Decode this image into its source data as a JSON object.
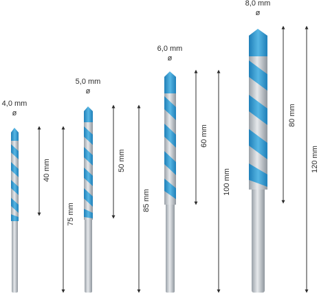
{
  "colors": {
    "tip_blue": "#3fa3d6",
    "tip_blue_dark": "#1f7fb8",
    "shank": "#c9ced3",
    "shank_dark": "#9aa1a8",
    "dimension_line": "#2b2b2b"
  },
  "bits": [
    {
      "diameter_label": "4,0 mm",
      "diameter_symbol": "ø",
      "working_length_label": "40 mm",
      "total_length_label": "75 mm",
      "working_length_mm": 40,
      "total_length_mm": 75
    },
    {
      "diameter_label": "5,0 mm",
      "diameter_symbol": "ø",
      "working_length_label": "50 mm",
      "total_length_label": "85 mm",
      "working_length_mm": 50,
      "total_length_mm": 85
    },
    {
      "diameter_label": "6,0 mm",
      "diameter_symbol": "ø",
      "working_length_label": "60 mm",
      "total_length_label": "100 mm",
      "working_length_mm": 60,
      "total_length_mm": 100
    },
    {
      "diameter_label": "8,0 mm",
      "diameter_symbol": "ø",
      "working_length_label": "80 mm",
      "total_length_label": "120 mm",
      "working_length_mm": 80,
      "total_length_mm": 120
    }
  ]
}
